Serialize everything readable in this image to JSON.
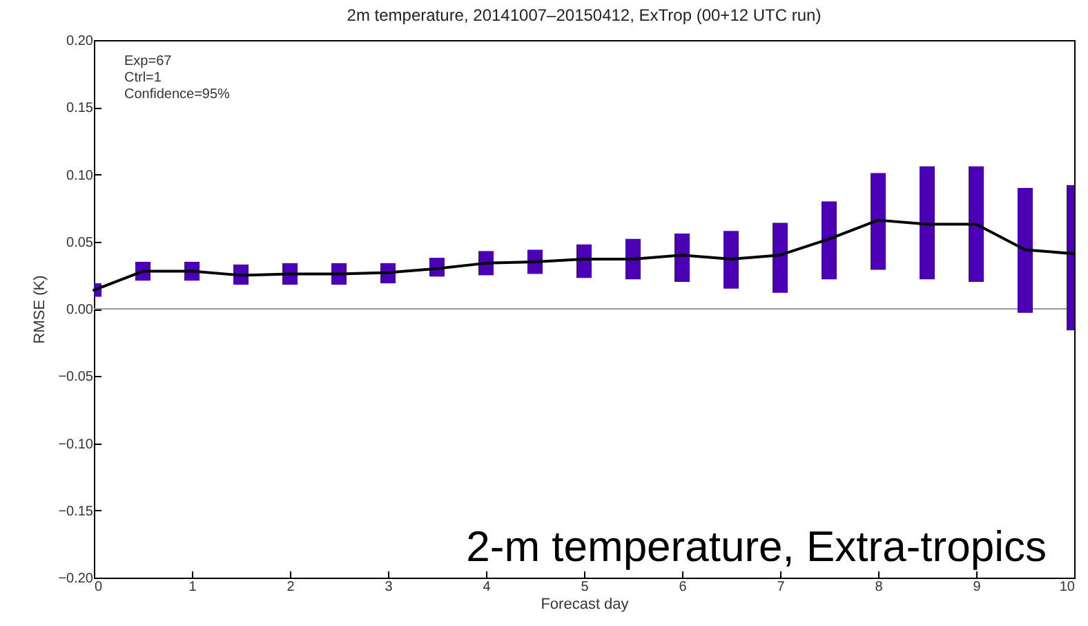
{
  "chart_data": {
    "type": "line",
    "title": "2m temperature, 20141007–20150412, ExTrop (00+12 UTC run)",
    "xlabel": "Forecast day",
    "ylabel": "RMSE (K)",
    "annotations": [
      "Exp=67",
      "Ctrl=1",
      "Confidence=95%",
      "2-m temperature, Extra-tropics"
    ],
    "x": [
      0,
      0.5,
      1,
      1.5,
      2,
      2.5,
      3,
      3.5,
      4,
      4.5,
      5,
      5.5,
      6,
      6.5,
      7,
      7.5,
      8,
      8.5,
      9,
      9.5,
      10
    ],
    "series": [
      {
        "type": "bar",
        "color": "#4b00b5",
        "base": [
          0.009,
          0.021,
          0.021,
          0.018,
          0.018,
          0.018,
          0.019,
          0.024,
          0.025,
          0.026,
          0.023,
          0.022,
          0.02,
          0.015,
          0.012,
          0.022,
          0.029,
          0.022,
          0.02,
          -0.003,
          -0.016
        ],
        "values": [
          0.01,
          0.014,
          0.014,
          0.015,
          0.016,
          0.016,
          0.015,
          0.014,
          0.018,
          0.018,
          0.025,
          0.03,
          0.036,
          0.043,
          0.052,
          0.058,
          0.072,
          0.084,
          0.086,
          0.093,
          0.108
        ]
      },
      {
        "color": "#000000",
        "values": [
          0.014,
          0.028,
          0.028,
          0.025,
          0.026,
          0.026,
          0.027,
          0.03,
          0.034,
          0.035,
          0.037,
          0.037,
          0.04,
          0.037,
          0.04,
          0.052,
          0.066,
          0.063,
          0.063,
          0.044,
          0.041
        ]
      }
    ],
    "xlim": [
      0,
      10
    ],
    "xticks": [
      0,
      1,
      2,
      3,
      4,
      5,
      6,
      7,
      8,
      9,
      10
    ],
    "ylim": [
      -0.2,
      0.2
    ],
    "yticks": [
      {
        "value": -0.2,
        "label": "−0.20"
      },
      {
        "value": -0.15,
        "label": "−0.15"
      },
      {
        "value": -0.1,
        "label": "−0.10"
      },
      {
        "value": -0.05,
        "label": "−0.05"
      },
      {
        "value": 0,
        "label": "0.00"
      },
      {
        "value": 0.05,
        "label": "0.05"
      },
      {
        "value": 0.1,
        "label": "0.10"
      },
      {
        "value": 0.15,
        "label": "0.15"
      },
      {
        "value": 0.2,
        "label": "0.20"
      }
    ],
    "ref_lines": [
      {
        "axis": "y",
        "value": 0,
        "color": "#999999"
      }
    ],
    "line_style": "solid"
  }
}
